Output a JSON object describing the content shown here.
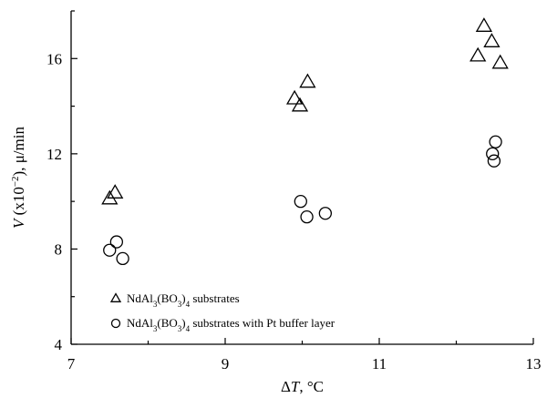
{
  "chart_data": {
    "type": "scatter",
    "xlabel_parts": [
      "Δ",
      "T",
      ", °C"
    ],
    "ylabel_parts": [
      "V",
      " (x10",
      "−2",
      "), μ/min"
    ],
    "xlim": [
      7,
      13
    ],
    "ylim": [
      4,
      18
    ],
    "xticks": [
      7,
      9,
      11,
      13
    ],
    "yticks": [
      4,
      8,
      12,
      16
    ],
    "grid": false,
    "legend_position": "bottom-left",
    "series": [
      {
        "name_parts": [
          "NdAl",
          "3",
          "(BO",
          "3",
          ")",
          "4",
          " substrates"
        ],
        "marker": "triangle",
        "points": [
          [
            7.5,
            10.1
          ],
          [
            7.57,
            10.35
          ],
          [
            9.9,
            14.3
          ],
          [
            9.97,
            14.0
          ],
          [
            10.07,
            15.0
          ],
          [
            12.28,
            16.1
          ],
          [
            12.36,
            17.35
          ],
          [
            12.46,
            16.7
          ],
          [
            12.57,
            15.8
          ]
        ]
      },
      {
        "name_parts": [
          "NdAl",
          "3",
          "(BO",
          "3",
          ")",
          "4",
          " substrates with Pt buffer layer"
        ],
        "marker": "circle",
        "points": [
          [
            7.5,
            7.95
          ],
          [
            7.59,
            8.3
          ],
          [
            7.67,
            7.6
          ],
          [
            9.98,
            10.0
          ],
          [
            10.06,
            9.35
          ],
          [
            10.3,
            9.5
          ],
          [
            12.47,
            12.0
          ],
          [
            12.49,
            11.7
          ],
          [
            12.51,
            12.5
          ]
        ]
      }
    ]
  }
}
